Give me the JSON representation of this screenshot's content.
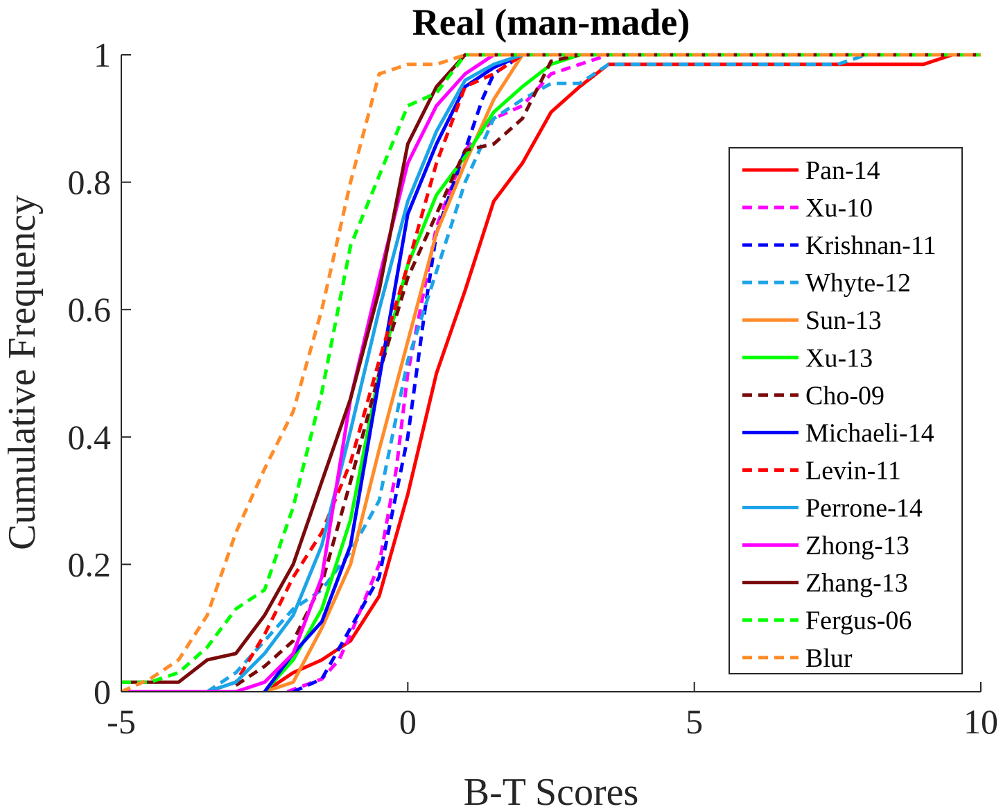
{
  "chart_data": {
    "type": "line",
    "title": "Real (man-made)",
    "xlabel": "B-T Scores",
    "ylabel": "Cumulative Frequency",
    "xlim": [
      -5,
      10
    ],
    "ylim": [
      0,
      1
    ],
    "xticks": [
      -5,
      0,
      5,
      10
    ],
    "xtick_labels": [
      "-5",
      "0",
      "5",
      "10"
    ],
    "yticks": [
      0,
      0.2,
      0.4,
      0.6,
      0.8,
      1
    ],
    "ytick_labels": [
      "0",
      "0.2",
      "0.4",
      "0.6",
      "0.8",
      "1"
    ],
    "grid": false,
    "legend_position": "right",
    "series": [
      {
        "name": "Pan-14",
        "color": "#ff0000",
        "dash": false,
        "x": [
          -2.5,
          -2,
          -1.5,
          -1,
          -0.5,
          0,
          0.5,
          1,
          1.5,
          2,
          2.5,
          3,
          3.5,
          4,
          5,
          6,
          7,
          8,
          9,
          9.5,
          10
        ],
        "y": [
          0,
          0.03,
          0.05,
          0.08,
          0.15,
          0.31,
          0.5,
          0.63,
          0.77,
          0.83,
          0.91,
          0.95,
          0.985,
          0.985,
          0.985,
          0.985,
          0.985,
          0.985,
          0.985,
          1,
          1
        ]
      },
      {
        "name": "Xu-10",
        "color": "#ff00ff",
        "dash": true,
        "x": [
          -2.1,
          -1.5,
          -1.2,
          -1,
          -0.5,
          -0.2,
          0,
          0.5,
          1,
          1.5,
          2,
          2.5,
          3,
          3.5,
          10
        ],
        "y": [
          0,
          0.02,
          0.05,
          0.09,
          0.2,
          0.35,
          0.5,
          0.73,
          0.85,
          0.9,
          0.92,
          0.97,
          0.985,
          1,
          1
        ]
      },
      {
        "name": "Krishnan-11",
        "color": "#0000ff",
        "dash": true,
        "x": [
          -2,
          -1.5,
          -1,
          -0.5,
          0,
          0.3,
          0.5,
          1,
          1.3,
          1.5,
          2,
          10
        ],
        "y": [
          0,
          0.02,
          0.1,
          0.18,
          0.4,
          0.6,
          0.72,
          0.85,
          0.93,
          0.97,
          1,
          1
        ]
      },
      {
        "name": "Whyte-12",
        "color": "#1ca4e8",
        "dash": true,
        "x": [
          -3.5,
          -3,
          -2.5,
          -2,
          -1.5,
          -1,
          -0.5,
          0,
          0.5,
          1,
          1.5,
          2,
          2.5,
          3,
          3.5,
          4,
          5,
          6,
          7,
          7.5,
          8,
          10
        ],
        "y": [
          0,
          0.03,
          0.08,
          0.13,
          0.16,
          0.22,
          0.3,
          0.52,
          0.66,
          0.8,
          0.9,
          0.93,
          0.955,
          0.955,
          0.985,
          0.985,
          0.985,
          0.985,
          0.985,
          0.985,
          1,
          1
        ]
      },
      {
        "name": "Sun-13",
        "color": "#ff8c2a",
        "dash": false,
        "x": [
          -2.5,
          -2,
          -1.5,
          -1,
          -0.5,
          0,
          0.5,
          1,
          1.5,
          2,
          10
        ],
        "y": [
          0,
          0.015,
          0.1,
          0.2,
          0.38,
          0.55,
          0.72,
          0.83,
          0.93,
          1,
          1
        ]
      },
      {
        "name": "Xu-13",
        "color": "#00ff00",
        "dash": false,
        "x": [
          -2.5,
          -2,
          -1.5,
          -1,
          -0.5,
          0,
          0.5,
          1,
          1.5,
          2,
          2.5,
          3,
          10
        ],
        "y": [
          0,
          0.05,
          0.13,
          0.27,
          0.5,
          0.67,
          0.78,
          0.84,
          0.91,
          0.95,
          0.985,
          1,
          1
        ]
      },
      {
        "name": "Cho-09",
        "color": "#7a0a0a",
        "dash": true,
        "x": [
          -3,
          -2.5,
          -2,
          -1.5,
          -1,
          -0.5,
          0,
          0.5,
          1,
          1.5,
          2,
          2.5,
          3,
          10
        ],
        "y": [
          0.01,
          0.04,
          0.08,
          0.17,
          0.33,
          0.5,
          0.65,
          0.75,
          0.85,
          0.86,
          0.9,
          0.99,
          1,
          1
        ]
      },
      {
        "name": "Michaeli-14",
        "color": "#0000ff",
        "dash": false,
        "x": [
          -2.5,
          -2,
          -1.5,
          -1,
          -0.5,
          0,
          0.5,
          1,
          1.5,
          2,
          10
        ],
        "y": [
          0,
          0.06,
          0.11,
          0.23,
          0.49,
          0.75,
          0.86,
          0.95,
          0.98,
          1,
          1
        ]
      },
      {
        "name": "Levin-11",
        "color": "#ff0000",
        "dash": true,
        "x": [
          -4.5,
          -4,
          -3.5,
          -3,
          -2.5,
          -2,
          -1.5,
          -1,
          -0.5,
          0,
          0.5,
          1,
          1.5,
          2,
          10
        ],
        "y": [
          0,
          0,
          0,
          0.015,
          0.09,
          0.18,
          0.25,
          0.36,
          0.52,
          0.67,
          0.83,
          0.95,
          0.97,
          1,
          1
        ]
      },
      {
        "name": "Perrone-14",
        "color": "#1ca4e8",
        "dash": false,
        "x": [
          -3.5,
          -3,
          -2.5,
          -2,
          -1.5,
          -1,
          -0.5,
          0,
          0.5,
          1,
          1.5,
          2,
          10
        ],
        "y": [
          0,
          0.015,
          0.06,
          0.12,
          0.23,
          0.41,
          0.6,
          0.77,
          0.88,
          0.96,
          0.985,
          1,
          1
        ]
      },
      {
        "name": "Zhong-13",
        "color": "#ff00ff",
        "dash": false,
        "x": [
          -5,
          -4,
          -3,
          -2.5,
          -2,
          -1.5,
          -1,
          -0.5,
          0,
          0.5,
          1,
          1.5,
          2,
          10
        ],
        "y": [
          0,
          0,
          0,
          0.015,
          0.06,
          0.18,
          0.46,
          0.65,
          0.83,
          0.92,
          0.97,
          1,
          1,
          1
        ]
      },
      {
        "name": "Zhang-13",
        "color": "#7a0a0a",
        "dash": false,
        "x": [
          -5,
          -4,
          -3.5,
          -3,
          -2.5,
          -2,
          -1.5,
          -1,
          -0.5,
          0,
          0.5,
          1,
          10
        ],
        "y": [
          0.015,
          0.015,
          0.05,
          0.06,
          0.12,
          0.2,
          0.33,
          0.46,
          0.63,
          0.86,
          0.95,
          1,
          1
        ]
      },
      {
        "name": "Fergus-06",
        "color": "#00ff00",
        "dash": true,
        "x": [
          -5,
          -4.5,
          -4,
          -3.5,
          -3,
          -2.5,
          -2,
          -1.5,
          -1,
          -0.5,
          0,
          0.5,
          1,
          10
        ],
        "y": [
          0.015,
          0.015,
          0.03,
          0.07,
          0.13,
          0.16,
          0.29,
          0.47,
          0.7,
          0.81,
          0.92,
          0.94,
          1,
          1
        ]
      },
      {
        "name": "Blur",
        "color": "#ff8c2a",
        "dash": true,
        "x": [
          -5,
          -4.5,
          -4,
          -3.5,
          -3,
          -2.5,
          -2,
          -1.5,
          -1,
          -0.5,
          0,
          0.5,
          1,
          10
        ],
        "y": [
          0,
          0.02,
          0.05,
          0.12,
          0.25,
          0.35,
          0.44,
          0.6,
          0.8,
          0.97,
          0.985,
          0.985,
          1,
          1
        ]
      }
    ]
  }
}
